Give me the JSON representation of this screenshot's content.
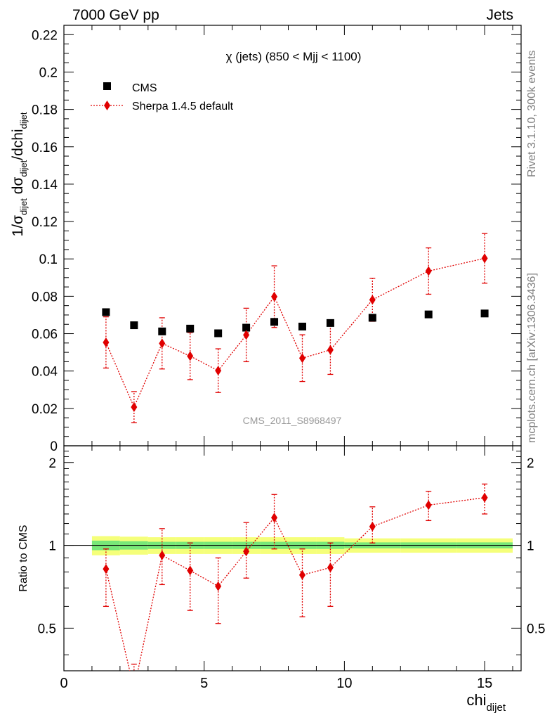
{
  "header": {
    "left": "7000 GeV pp",
    "right": "Jets"
  },
  "side_labels": {
    "rivet": "Rivet 3.1.10,  300k events",
    "mcplots": "mcplots.cern.ch [arXiv:1306.3436]"
  },
  "chart_data": {
    "type": "scatter",
    "title": "χ (jets) (850 < Mjj < 1100)",
    "watermark": "CMS_2011_S8968497",
    "xlabel": "chi",
    "xlabel_sub": "dijet",
    "ylabel_main": "1/σ_dijet dσ_dijet/dchi_dijet",
    "ylabel_ratio": "Ratio to CMS",
    "xlim": [
      0,
      16.3
    ],
    "ylim_main": [
      0,
      0.225
    ],
    "ylim_ratio": [
      0.35,
      2.3
    ],
    "ratio_log_scale": true,
    "x_ticks": [
      "0",
      "5",
      "10",
      "15"
    ],
    "y_ticks_main": [
      "0",
      "0.02",
      "0.04",
      "0.06",
      "0.08",
      "0.1",
      "0.12",
      "0.14",
      "0.16",
      "0.18",
      "0.2",
      "0.22"
    ],
    "y_ticks_ratio": [
      "0.5",
      "1",
      "2"
    ],
    "legend_position": "top-left",
    "series": [
      {
        "name": "CMS",
        "marker": "square",
        "color": "#000000",
        "x": [
          1.5,
          2.5,
          3.5,
          4.5,
          5.5,
          6.5,
          7.5,
          8.5,
          9.5,
          11,
          13,
          15
        ],
        "y": [
          0.0715,
          0.0645,
          0.0612,
          0.0627,
          0.0602,
          0.0632,
          0.0663,
          0.0638,
          0.0657,
          0.0685,
          0.0703,
          0.0708
        ]
      },
      {
        "name": "Sherpa 1.4.5 default",
        "marker": "diamond",
        "color": "#e00000",
        "x": [
          1.5,
          2.5,
          3.5,
          4.5,
          5.5,
          6.5,
          7.5,
          8.5,
          9.5,
          11,
          13,
          15
        ],
        "y": [
          0.0553,
          0.0207,
          0.0548,
          0.048,
          0.0402,
          0.0593,
          0.0798,
          0.0469,
          0.0513,
          0.0781,
          0.0935,
          0.1003
        ],
        "y_err": [
          0.0137,
          0.0083,
          0.0137,
          0.0126,
          0.0117,
          0.0143,
          0.0165,
          0.0125,
          0.0131,
          0.0115,
          0.0124,
          0.0133
        ]
      }
    ],
    "ratio_series": {
      "name": "Sherpa 1.4.5 default",
      "x": [
        1.5,
        2.5,
        3.5,
        4.5,
        5.5,
        6.5,
        7.5,
        8.5,
        9.5,
        11,
        13,
        15
      ],
      "y": [
        0.82,
        0.3,
        0.92,
        0.81,
        0.71,
        0.95,
        1.26,
        0.78,
        0.83,
        1.17,
        1.4,
        1.49
      ],
      "y_lo": [
        0.6,
        0.23,
        0.72,
        0.58,
        0.52,
        0.76,
        0.97,
        0.55,
        0.6,
        1.02,
        1.23,
        1.3
      ],
      "y_hi": [
        0.97,
        0.37,
        1.15,
        1.02,
        0.9,
        1.21,
        1.53,
        0.97,
        1.02,
        1.38,
        1.57,
        1.67
      ]
    },
    "ratio_band": {
      "x_edges": [
        1,
        2,
        3,
        4,
        5,
        6,
        7,
        8,
        9,
        10,
        12,
        14,
        16
      ],
      "inner": [
        0.04,
        0.035,
        0.03,
        0.03,
        0.03,
        0.03,
        0.03,
        0.03,
        0.03,
        0.025,
        0.025,
        0.025
      ],
      "outer": [
        0.08,
        0.075,
        0.07,
        0.07,
        0.07,
        0.07,
        0.07,
        0.07,
        0.07,
        0.06,
        0.06,
        0.06
      ],
      "inner_color": "#78e878",
      "outer_color": "#f5ff7a"
    }
  }
}
